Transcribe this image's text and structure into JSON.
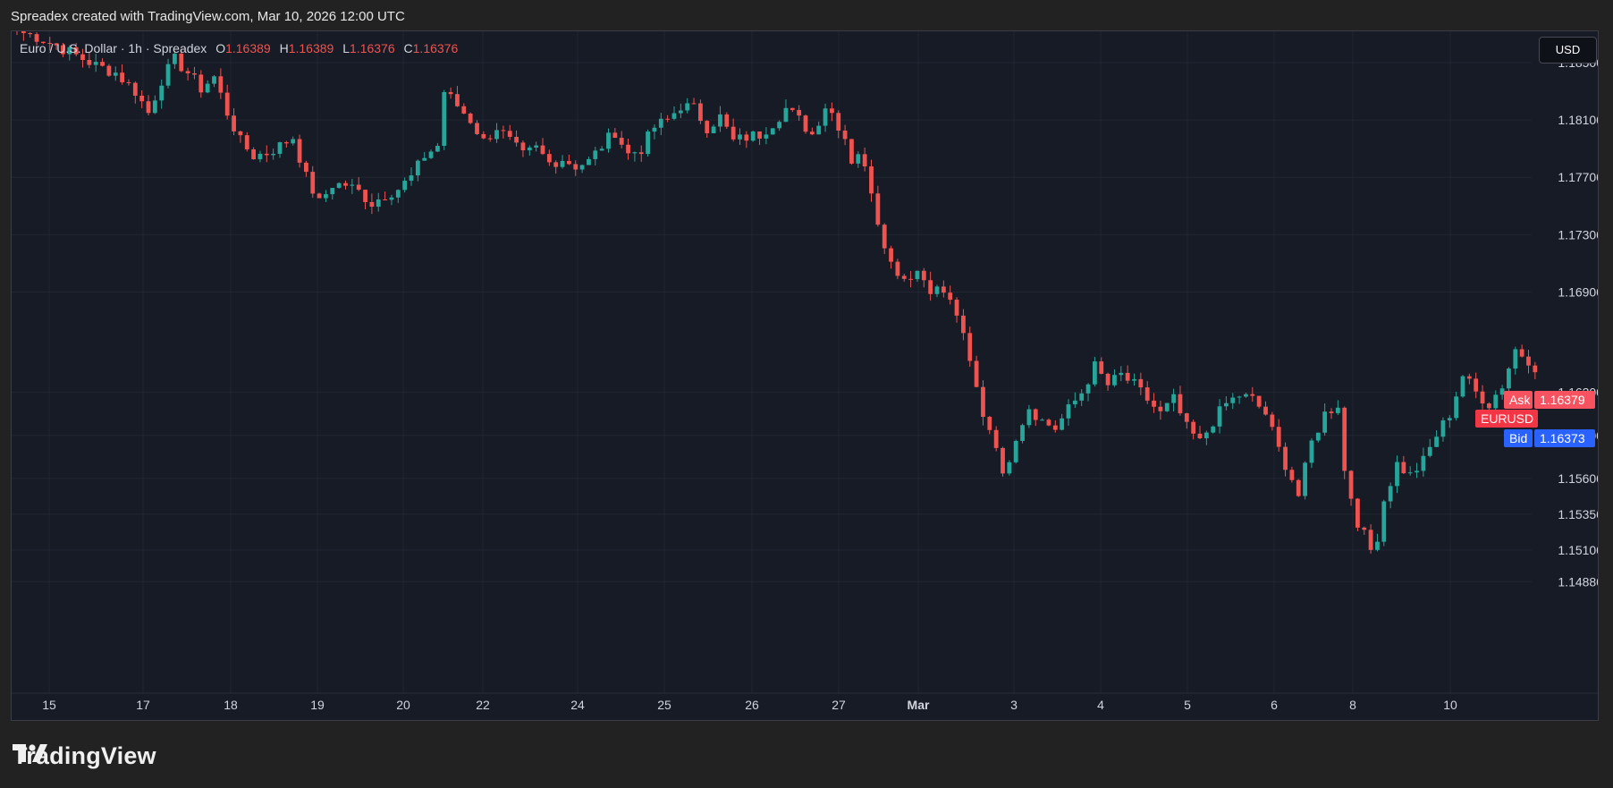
{
  "header": {
    "attribution": "Spreadex created with TradingView.com, Mar 10, 2026 12:00 UTC"
  },
  "legend": {
    "name": "Euro / U.S. Dollar · 1h · Spreadex",
    "o_label": "O",
    "o_value": "1.16389",
    "h_label": "H",
    "h_value": "1.16389",
    "l_label": "L",
    "l_value": "1.16376",
    "c_label": "C",
    "c_value": "1.16376"
  },
  "currency_button": "USD",
  "price_tags": {
    "ask_label": "Ask",
    "ask_value": "1.16379",
    "symbol": "EURUSD",
    "bid_label": "Bid",
    "bid_value": "1.16373"
  },
  "footer": {
    "brand": "TradingView"
  },
  "colors": {
    "up": "#26a69a",
    "down": "#ef5350",
    "background": "#171b25",
    "bid": "#2962ff",
    "ask": "#f7525f"
  },
  "chart_data": {
    "type": "candlestick",
    "symbol": "EURUSD",
    "interval": "1h",
    "y_ticks": [
      "1.18500",
      "1.18100",
      "1.17700",
      "1.17300",
      "1.16900",
      "1.16200",
      "1.15900",
      "1.15600",
      "1.15350",
      "1.15100",
      "1.14880"
    ],
    "x_ticks": [
      "15",
      "17",
      "18",
      "19",
      "20",
      "22",
      "24",
      "25",
      "26",
      "27",
      "Mar",
      "3",
      "4",
      "5",
      "6",
      "8",
      "10"
    ],
    "ylim": [
      1.147,
      1.1875
    ],
    "grid": true,
    "close_path": [
      [
        0,
        1.1872
      ],
      [
        3,
        1.1868
      ],
      [
        6,
        1.1862
      ],
      [
        9,
        1.1855
      ],
      [
        12,
        1.1848
      ],
      [
        15,
        1.1843
      ],
      [
        18,
        1.183
      ],
      [
        20,
        1.1815
      ],
      [
        22,
        1.1838
      ],
      [
        24,
        1.1852
      ],
      [
        26,
        1.1843
      ],
      [
        28,
        1.1832
      ],
      [
        30,
        1.184
      ],
      [
        32,
        1.1815
      ],
      [
        34,
        1.1795
      ],
      [
        36,
        1.1785
      ],
      [
        38,
        1.1787
      ],
      [
        40,
        1.1792
      ],
      [
        42,
        1.1798
      ],
      [
        44,
        1.177
      ],
      [
        46,
        1.1752
      ],
      [
        48,
        1.1765
      ],
      [
        50,
        1.1765
      ],
      [
        52,
        1.176
      ],
      [
        54,
        1.1752
      ],
      [
        56,
        1.1758
      ],
      [
        58,
        1.1762
      ],
      [
        60,
        1.177
      ],
      [
        62,
        1.1785
      ],
      [
        64,
        1.1792
      ],
      [
        65,
        1.183
      ],
      [
        67,
        1.182
      ],
      [
        69,
        1.181
      ],
      [
        71,
        1.1795
      ],
      [
        73,
        1.1805
      ],
      [
        75,
        1.1795
      ],
      [
        77,
        1.1785
      ],
      [
        79,
        1.179
      ],
      [
        81,
        1.178
      ],
      [
        83,
        1.1783
      ],
      [
        85,
        1.1778
      ],
      [
        87,
        1.1781
      ],
      [
        89,
        1.1792
      ],
      [
        91,
        1.1802
      ],
      [
        93,
        1.1786
      ],
      [
        95,
        1.179
      ],
      [
        97,
        1.1805
      ],
      [
        99,
        1.181
      ],
      [
        101,
        1.182
      ],
      [
        103,
        1.1818
      ],
      [
        105,
        1.1805
      ],
      [
        107,
        1.1812
      ],
      [
        109,
        1.1795
      ],
      [
        111,
        1.1798
      ],
      [
        113,
        1.18
      ],
      [
        115,
        1.1808
      ],
      [
        117,
        1.1818
      ],
      [
        119,
        1.181
      ],
      [
        121,
        1.18
      ],
      [
        123,
        1.182
      ],
      [
        124,
        1.1815
      ],
      [
        126,
        1.1798
      ],
      [
        127,
        1.1782
      ],
      [
        128,
        1.1788
      ],
      [
        130,
        1.1762
      ],
      [
        131,
        1.174
      ],
      [
        133,
        1.171
      ],
      [
        135,
        1.17
      ],
      [
        137,
        1.1705
      ],
      [
        139,
        1.1693
      ],
      [
        141,
        1.169
      ],
      [
        143,
        1.1675
      ],
      [
        145,
        1.164
      ],
      [
        147,
        1.1605
      ],
      [
        149,
        1.1585
      ],
      [
        150,
        1.156
      ],
      [
        152,
        1.159
      ],
      [
        154,
        1.161
      ],
      [
        156,
        1.16
      ],
      [
        158,
        1.1595
      ],
      [
        160,
        1.1608
      ],
      [
        162,
        1.162
      ],
      [
        164,
        1.1638
      ],
      [
        166,
        1.1625
      ],
      [
        168,
        1.1632
      ],
      [
        170,
        1.1625
      ],
      [
        172,
        1.1615
      ],
      [
        174,
        1.1605
      ],
      [
        176,
        1.1615
      ],
      [
        178,
        1.1595
      ],
      [
        180,
        1.1585
      ],
      [
        182,
        1.16
      ],
      [
        184,
        1.1612
      ],
      [
        186,
        1.1618
      ],
      [
        188,
        1.1615
      ],
      [
        190,
        1.1605
      ],
      [
        192,
        1.158
      ],
      [
        194,
        1.156
      ],
      [
        195,
        1.1548
      ],
      [
        197,
        1.1585
      ],
      [
        199,
        1.1605
      ],
      [
        201,
        1.1612
      ],
      [
        202,
        1.1565
      ],
      [
        204,
        1.153
      ],
      [
        206,
        1.151
      ],
      [
        207,
        1.152
      ],
      [
        208,
        1.1545
      ],
      [
        210,
        1.157
      ],
      [
        212,
        1.1562
      ],
      [
        214,
        1.1572
      ],
      [
        216,
        1.159
      ],
      [
        218,
        1.1605
      ],
      [
        220,
        1.1632
      ],
      [
        222,
        1.162
      ],
      [
        224,
        1.1612
      ],
      [
        226,
        1.1625
      ],
      [
        228,
        1.165
      ],
      [
        230,
        1.1643
      ],
      [
        231,
        1.1638
      ]
    ]
  }
}
